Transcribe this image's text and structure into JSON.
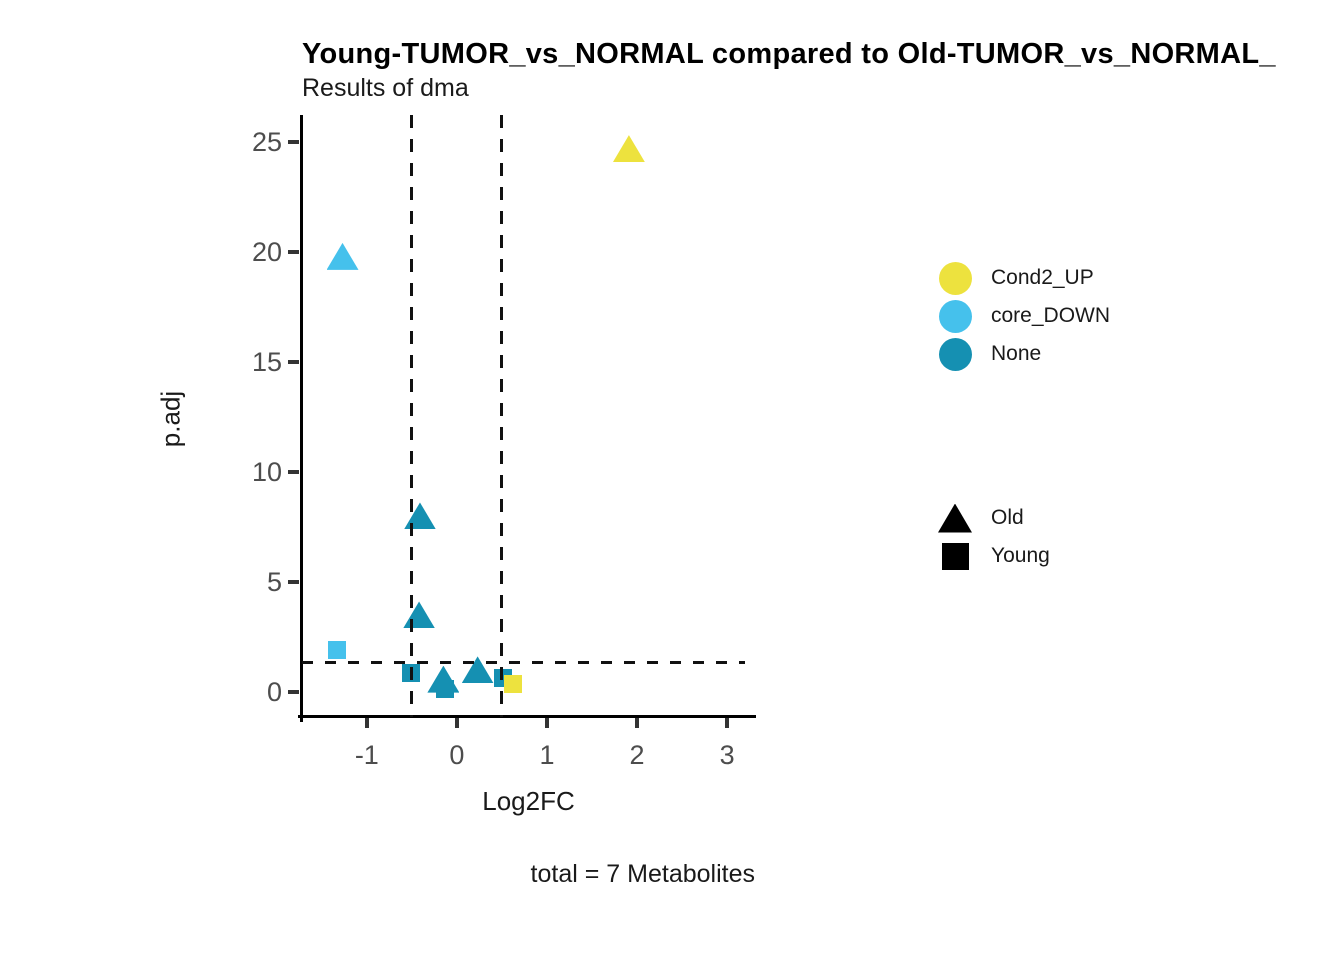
{
  "title": "Young-TUMOR_vs_NORMAL compared to Old-TUMOR_vs_NORMAL_",
  "subtitle": "Results of dma",
  "caption": "total = 7 Metabolites",
  "chart_data": {
    "type": "scatter",
    "xlabel": "Log2FC",
    "ylabel": "p.adj",
    "xlim": [
      -1.72,
      3.31
    ],
    "ylim": [
      -1.14,
      26.23
    ],
    "x_ticks": [
      -1,
      0,
      1,
      2,
      3
    ],
    "y_ticks": [
      0,
      5,
      10,
      15,
      20,
      25
    ],
    "grid": false,
    "legend_position": "right",
    "vlines": [
      -0.5,
      0.5
    ],
    "hline": 1.35,
    "status_colors": {
      "Cond2_UP": "#EDE23E",
      "core_DOWN": "#45C1EC",
      "None": "#1590B2"
    },
    "group_shapes": {
      "Old": "triangle",
      "Young": "square"
    },
    "points": [
      {
        "x": 1.91,
        "y": 24.7,
        "status": "Cond2_UP",
        "group": "Old"
      },
      {
        "x": -1.27,
        "y": 19.8,
        "status": "core_DOWN",
        "group": "Old"
      },
      {
        "x": -0.41,
        "y": 8.0,
        "status": "None",
        "group": "Old"
      },
      {
        "x": -0.42,
        "y": 3.5,
        "status": "None",
        "group": "Old"
      },
      {
        "x": -1.33,
        "y": 1.9,
        "status": "core_DOWN",
        "group": "Young"
      },
      {
        "x": -0.51,
        "y": 0.85,
        "status": "None",
        "group": "Young"
      },
      {
        "x": -0.15,
        "y": 0.58,
        "status": "None",
        "group": "Old"
      },
      {
        "x": -0.13,
        "y": 0.15,
        "status": "None",
        "group": "Young"
      },
      {
        "x": 0.23,
        "y": 1.0,
        "status": "None",
        "group": "Old"
      },
      {
        "x": 0.51,
        "y": 0.64,
        "status": "None",
        "group": "Young"
      },
      {
        "x": 0.62,
        "y": 0.36,
        "status": "Cond2_UP",
        "group": "Young"
      }
    ]
  },
  "legend": {
    "color_entries": [
      "Cond2_UP",
      "core_DOWN",
      "None"
    ],
    "shape_entries": [
      "Old",
      "Young"
    ]
  }
}
